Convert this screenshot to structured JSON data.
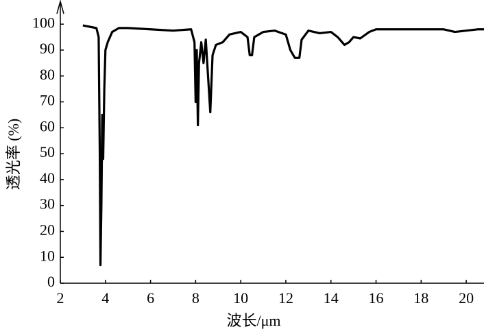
{
  "chart_data": {
    "type": "line",
    "x_label": "波长/μm",
    "y_label": "透光率 (%)",
    "x": [
      3.0,
      3.3,
      3.6,
      3.7,
      3.75,
      3.78,
      3.82,
      3.86,
      3.9,
      3.95,
      4.0,
      4.1,
      4.3,
      4.6,
      5.0,
      6.0,
      7.0,
      7.8,
      7.95,
      8.0,
      8.05,
      8.1,
      8.15,
      8.25,
      8.35,
      8.45,
      8.55,
      8.65,
      8.75,
      8.9,
      9.2,
      9.5,
      10.0,
      10.3,
      10.4,
      10.5,
      10.6,
      11.0,
      11.5,
      12.0,
      12.2,
      12.4,
      12.6,
      12.7,
      13.0,
      13.5,
      14.0,
      14.3,
      14.6,
      14.8,
      15.0,
      15.3,
      15.7,
      16.0,
      17.0,
      18.0,
      19.0,
      19.5,
      20.0,
      20.5,
      20.9
    ],
    "values": [
      99.5,
      99,
      98.5,
      95,
      50,
      7,
      30,
      65,
      48,
      75,
      90,
      93,
      97,
      98.5,
      98.5,
      98,
      97.5,
      98,
      93,
      70,
      90,
      61,
      85,
      93,
      85,
      94,
      80,
      66,
      88,
      92,
      93,
      96,
      97,
      95,
      88,
      88,
      95,
      97,
      97.5,
      96,
      90,
      87,
      87,
      94,
      97.5,
      96.5,
      97,
      95,
      92,
      93,
      95,
      94.5,
      97,
      98,
      98,
      98,
      98,
      97,
      97.5,
      98,
      98
    ],
    "color": "#000000",
    "xlim": [
      2,
      20.9
    ],
    "ylim": [
      0,
      108
    ],
    "xticks": [
      2,
      4,
      6,
      8,
      10,
      12,
      14,
      16,
      18,
      20
    ],
    "yticks": [
      0,
      10,
      20,
      30,
      40,
      50,
      60,
      70,
      80,
      90,
      100
    ],
    "grid": false
  }
}
